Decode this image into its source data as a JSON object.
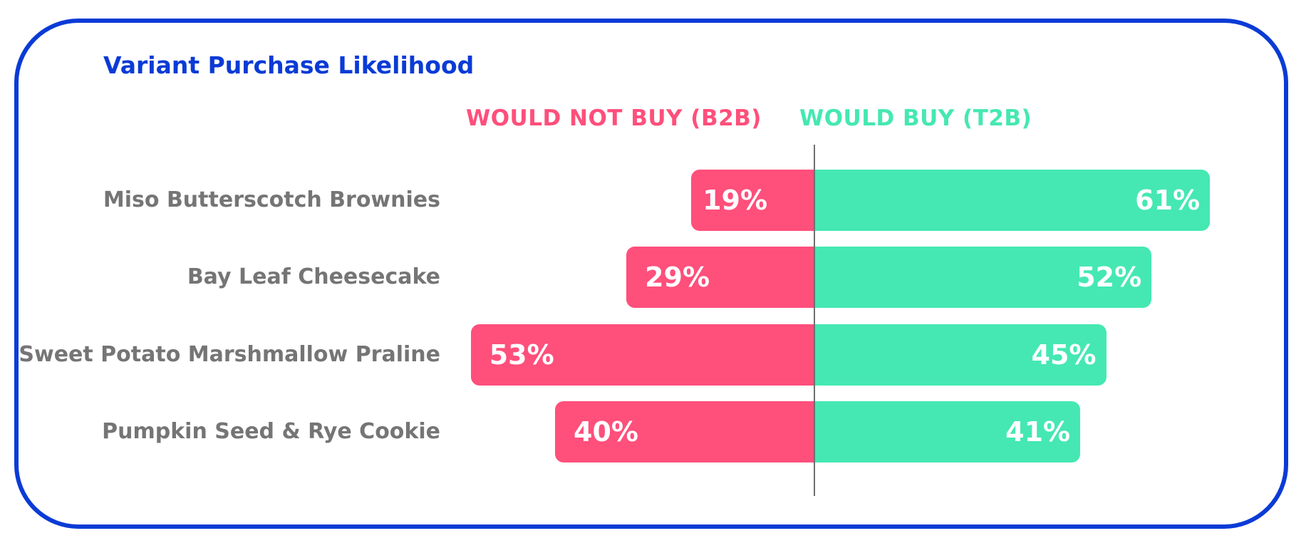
{
  "chart_data": {
    "type": "bar",
    "orientation": "horizontal-diverging",
    "title": "Variant Purchase Likelihood",
    "legend": [
      {
        "name": "WOULD NOT BUY (B2B)",
        "color": "#ff4f7b"
      },
      {
        "name": "WOULD BUY (T2B)",
        "color": "#45e8b2"
      }
    ],
    "categories": [
      "Miso Butterscotch Brownies",
      "Bay Leaf Cheesecake",
      "Sweet Potato Marshmallow Praline",
      "Pumpkin Seed & Rye Cookie"
    ],
    "series": [
      {
        "name": "WOULD NOT BUY (B2B)",
        "values": [
          19,
          29,
          53,
          40
        ],
        "labels": [
          "19%",
          "29%",
          "53%",
          "40%"
        ]
      },
      {
        "name": "WOULD BUY (T2B)",
        "values": [
          61,
          52,
          45,
          41
        ],
        "labels": [
          "61%",
          "52%",
          "45%",
          "41%"
        ]
      }
    ],
    "unit": "%",
    "xlim": [
      -53,
      65
    ],
    "grid": false
  },
  "colors": {
    "accent": "#0a3bd6",
    "negative": "#ff4f7b",
    "positive": "#45e8b2",
    "label": "#757575"
  }
}
